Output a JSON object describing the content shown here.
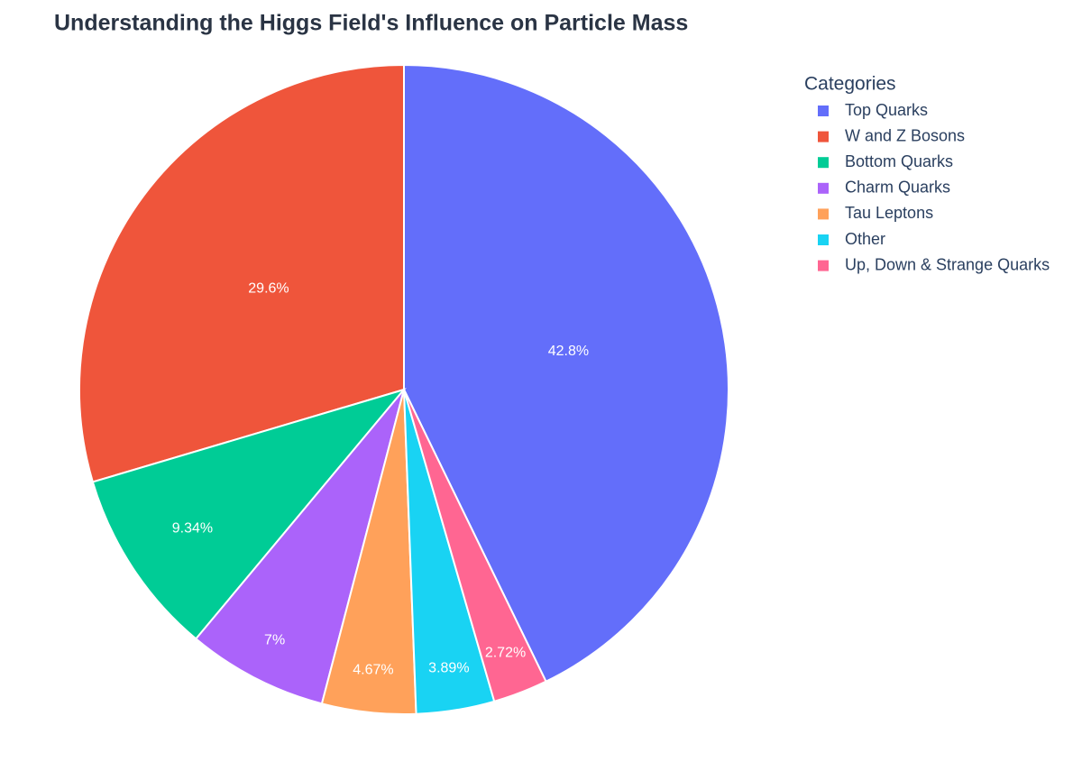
{
  "chart_data": {
    "type": "pie",
    "title": "Understanding the Higgs Field's Influence on Particle Mass",
    "legend_title": "Categories",
    "categories": [
      "Top Quarks",
      "W and Z Bosons",
      "Bottom Quarks",
      "Charm Quarks",
      "Tau Leptons",
      "Other",
      "Up, Down & Strange Quarks"
    ],
    "values": [
      42.8,
      29.6,
      9.34,
      7,
      4.67,
      3.89,
      2.72
    ],
    "value_labels": [
      "42.8%",
      "29.6%",
      "9.34%",
      "7%",
      "4.67%",
      "3.89%",
      "2.72%"
    ],
    "colors": [
      "#636efa",
      "#ef553b",
      "#00cc96",
      "#ab63fa",
      "#ffa15a",
      "#19d3f3",
      "#ff6692"
    ],
    "legend_position": "right"
  }
}
